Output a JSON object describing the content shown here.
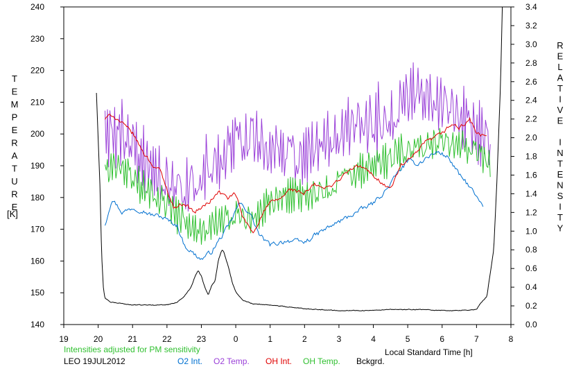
{
  "chart_data": {
    "type": "line",
    "xlabel": "Local Standard Time [h]",
    "x_ticks": [
      "19",
      "20",
      "21",
      "22",
      "23",
      "0",
      "1",
      "2",
      "3",
      "4",
      "5",
      "6",
      "7",
      "8"
    ],
    "xlim": [
      19,
      32
    ],
    "ylabel_left": "TEMPERATURE",
    "ylabel_left_unit": "[K]",
    "ylim_left": [
      140,
      240
    ],
    "y_ticks_left": [
      "140",
      "150",
      "160",
      "170",
      "180",
      "190",
      "200",
      "210",
      "220",
      "230",
      "240"
    ],
    "ylabel_right": "RELATIVE INTENSITY",
    "ylim_right": [
      0.0,
      3.4
    ],
    "y_ticks_right": [
      "0.0",
      "0.2",
      "0.4",
      "0.6",
      "0.8",
      "1.0",
      "1.2",
      "1.4",
      "1.6",
      "1.8",
      "2.0",
      "2.2",
      "2.4",
      "2.6",
      "2.8",
      "3.0",
      "3.2",
      "3.4"
    ],
    "note": "Intensities adjusted for PM sensitivity",
    "station": "LEO 19JUL2012",
    "grid": false,
    "series": [
      {
        "name": "O2 Int.",
        "axis": "right",
        "color": "#0070d0",
        "noise": 0.04,
        "x": [
          20.2,
          20.4,
          20.7,
          21.0,
          21.3,
          21.5,
          21.8,
          22.0,
          22.3,
          22.5,
          22.8,
          23.0,
          23.3,
          23.6,
          23.8,
          24.1,
          24.4,
          24.7,
          25.0,
          25.5,
          26.0,
          26.5,
          27.0,
          27.5,
          28.0,
          28.4,
          28.7,
          29.0,
          29.3,
          29.6,
          29.9,
          30.2,
          30.5,
          30.8,
          31.0,
          31.2
        ],
        "values": [
          1.07,
          1.35,
          1.2,
          1.25,
          1.22,
          1.18,
          1.16,
          1.12,
          1.06,
          0.85,
          0.75,
          0.7,
          0.78,
          0.95,
          1.06,
          1.3,
          1.2,
          0.95,
          0.85,
          0.9,
          0.88,
          1.0,
          1.1,
          1.2,
          1.3,
          1.45,
          1.62,
          1.75,
          1.72,
          1.8,
          1.85,
          1.78,
          1.6,
          1.48,
          1.36,
          1.25
        ]
      },
      {
        "name": "O2 Temp.",
        "axis": "left",
        "color": "#9a40d8",
        "noise": 14,
        "x": [
          20.2,
          20.5,
          20.8,
          21.0,
          21.5,
          22.0,
          22.5,
          23.0,
          23.5,
          24.0,
          24.5,
          25.0,
          25.5,
          26.0,
          26.5,
          27.0,
          27.5,
          28.0,
          28.5,
          29.0,
          29.3,
          29.5,
          30.0,
          30.3,
          30.5,
          31.0,
          31.4
        ],
        "values": [
          200,
          200,
          200,
          197,
          190,
          185,
          182,
          188,
          192,
          197,
          200,
          194,
          195,
          192,
          200,
          200,
          205,
          203,
          205,
          212,
          215,
          212,
          210,
          208,
          205,
          200,
          198
        ]
      },
      {
        "name": "OH Int.",
        "axis": "right",
        "color": "#e00000",
        "noise": 0.035,
        "x": [
          20.2,
          20.4,
          20.7,
          21.0,
          21.3,
          21.6,
          21.8,
          22.0,
          22.2,
          22.5,
          22.8,
          23.0,
          23.2,
          23.5,
          23.8,
          24.0,
          24.2,
          24.5,
          24.8,
          25.0,
          25.3,
          25.6,
          26.0,
          26.3,
          26.6,
          27.0,
          27.3,
          27.6,
          28.0,
          28.3,
          28.5,
          28.8,
          29.0,
          29.3,
          29.5,
          29.8,
          30.0,
          30.3,
          30.5,
          30.8,
          31.0,
          31.3
        ],
        "values": [
          2.2,
          2.25,
          2.15,
          2.05,
          1.85,
          1.7,
          1.65,
          1.45,
          1.25,
          1.3,
          1.2,
          1.25,
          1.3,
          1.42,
          1.35,
          1.4,
          1.15,
          0.98,
          1.2,
          1.3,
          1.35,
          1.45,
          1.4,
          1.5,
          1.45,
          1.55,
          1.65,
          1.7,
          1.6,
          1.5,
          1.45,
          1.7,
          1.75,
          1.85,
          1.95,
          2.0,
          2.05,
          2.15,
          2.1,
          2.2,
          2.05,
          2.0
        ]
      },
      {
        "name": "OH Temp.",
        "axis": "left",
        "color": "#30c030",
        "noise": 8,
        "x": [
          20.2,
          20.5,
          21.0,
          21.5,
          22.0,
          22.5,
          23.0,
          23.5,
          24.0,
          24.5,
          25.0,
          25.5,
          26.0,
          26.5,
          27.0,
          27.5,
          28.0,
          28.5,
          29.0,
          29.5,
          30.0,
          30.5,
          31.0,
          31.4
        ],
        "values": [
          188,
          190,
          186,
          182,
          178,
          172,
          170,
          172,
          175,
          172,
          178,
          180,
          180,
          182,
          185,
          188,
          190,
          193,
          195,
          196,
          198,
          197,
          195,
          190
        ]
      },
      {
        "name": "Bckgrd.",
        "axis": "right",
        "color": "#000000",
        "noise": 0.006,
        "x": [
          19.95,
          20.05,
          20.1,
          20.15,
          20.2,
          20.35,
          21.0,
          21.5,
          22.0,
          22.3,
          22.5,
          22.7,
          22.8,
          22.9,
          23.0,
          23.1,
          23.2,
          23.3,
          23.4,
          23.5,
          23.6,
          23.65,
          23.7,
          23.8,
          23.9,
          24.0,
          24.2,
          24.5,
          25.0,
          25.5,
          26.0,
          26.5,
          27.0,
          27.5,
          28.0,
          28.5,
          29.0,
          29.5,
          30.0,
          30.5,
          31.0,
          31.1,
          31.3,
          31.5,
          31.6,
          31.7,
          31.75
        ],
        "values": [
          2.48,
          1.5,
          0.75,
          0.4,
          0.28,
          0.24,
          0.21,
          0.21,
          0.21,
          0.24,
          0.3,
          0.4,
          0.5,
          0.58,
          0.52,
          0.4,
          0.32,
          0.42,
          0.47,
          0.7,
          0.8,
          0.78,
          0.72,
          0.6,
          0.45,
          0.35,
          0.26,
          0.22,
          0.21,
          0.19,
          0.17,
          0.16,
          0.15,
          0.15,
          0.15,
          0.16,
          0.16,
          0.16,
          0.15,
          0.15,
          0.16,
          0.22,
          0.3,
          0.8,
          1.6,
          2.6,
          3.4
        ]
      }
    ]
  }
}
